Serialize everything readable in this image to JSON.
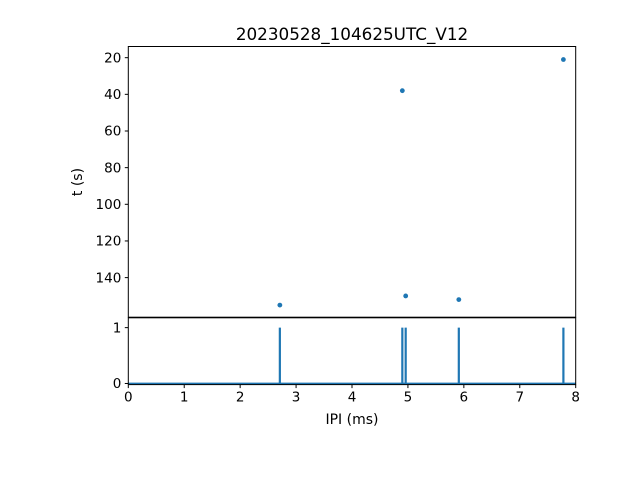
{
  "chart_data": [
    {
      "type": "scatter",
      "title": "20230528_104625UTC_V12",
      "xlabel": "",
      "ylabel": "t (s)",
      "points": [
        {
          "x": 2.71,
          "y": 155
        },
        {
          "x": 4.9,
          "y": 38
        },
        {
          "x": 4.96,
          "y": 150
        },
        {
          "x": 5.91,
          "y": 152
        },
        {
          "x": 7.78,
          "y": 21
        }
      ],
      "xlim": [
        0,
        8
      ],
      "ylim": [
        161.6,
        13.9
      ],
      "y_axis_inverted": true,
      "yticks": [
        20,
        40,
        60,
        80,
        100,
        120,
        140
      ],
      "xtick_labels_shown": false,
      "marker_color": "#1f77b4",
      "grid": false,
      "legend_position": "none"
    },
    {
      "type": "line",
      "title": "",
      "xlabel": "IPI (ms)",
      "ylabel": "",
      "spike_x": [
        2.71,
        4.9,
        4.96,
        5.91,
        7.78
      ],
      "spike_height": 1,
      "baseline_y": 0,
      "xlim": [
        0,
        8
      ],
      "ylim": [
        -0.02,
        1.176
      ],
      "xticks": [
        0,
        1,
        2,
        3,
        4,
        5,
        6,
        7,
        8
      ],
      "yticks": [
        0,
        1
      ],
      "line_color": "#1f77b4",
      "grid": false,
      "legend_position": "none"
    }
  ],
  "colors": {
    "series_blue": "#1f77b4",
    "spine_black": "#000000",
    "background": "#ffffff"
  }
}
